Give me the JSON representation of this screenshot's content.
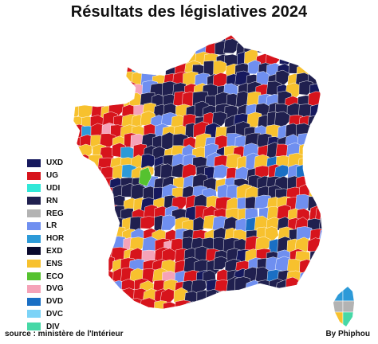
{
  "title": "Résultats des législatives 2024",
  "legend": [
    {
      "label": "UXD",
      "color": "#16195e"
    },
    {
      "label": "UG",
      "color": "#d7141c"
    },
    {
      "label": "UDI",
      "color": "#31e8d8"
    },
    {
      "label": "RN",
      "color": "#20204f"
    },
    {
      "label": "REG",
      "color": "#b3b3b3"
    },
    {
      "label": "LR",
      "color": "#6f8ff0"
    },
    {
      "label": "HOR",
      "color": "#2d9ad8"
    },
    {
      "label": "EXD",
      "color": "#0a0a2e"
    },
    {
      "label": "ENS",
      "color": "#f7c12e"
    },
    {
      "label": "ECO",
      "color": "#55c22f"
    },
    {
      "label": "DVG",
      "color": "#f5a3b8"
    },
    {
      "label": "DVD",
      "color": "#1a6fc4"
    },
    {
      "label": "DVC",
      "color": "#7cd3f7"
    },
    {
      "label": "DIV",
      "color": "#46d8a6"
    }
  ],
  "source": "source : ministère de l'Intérieur",
  "credit": "By Phiphou"
}
